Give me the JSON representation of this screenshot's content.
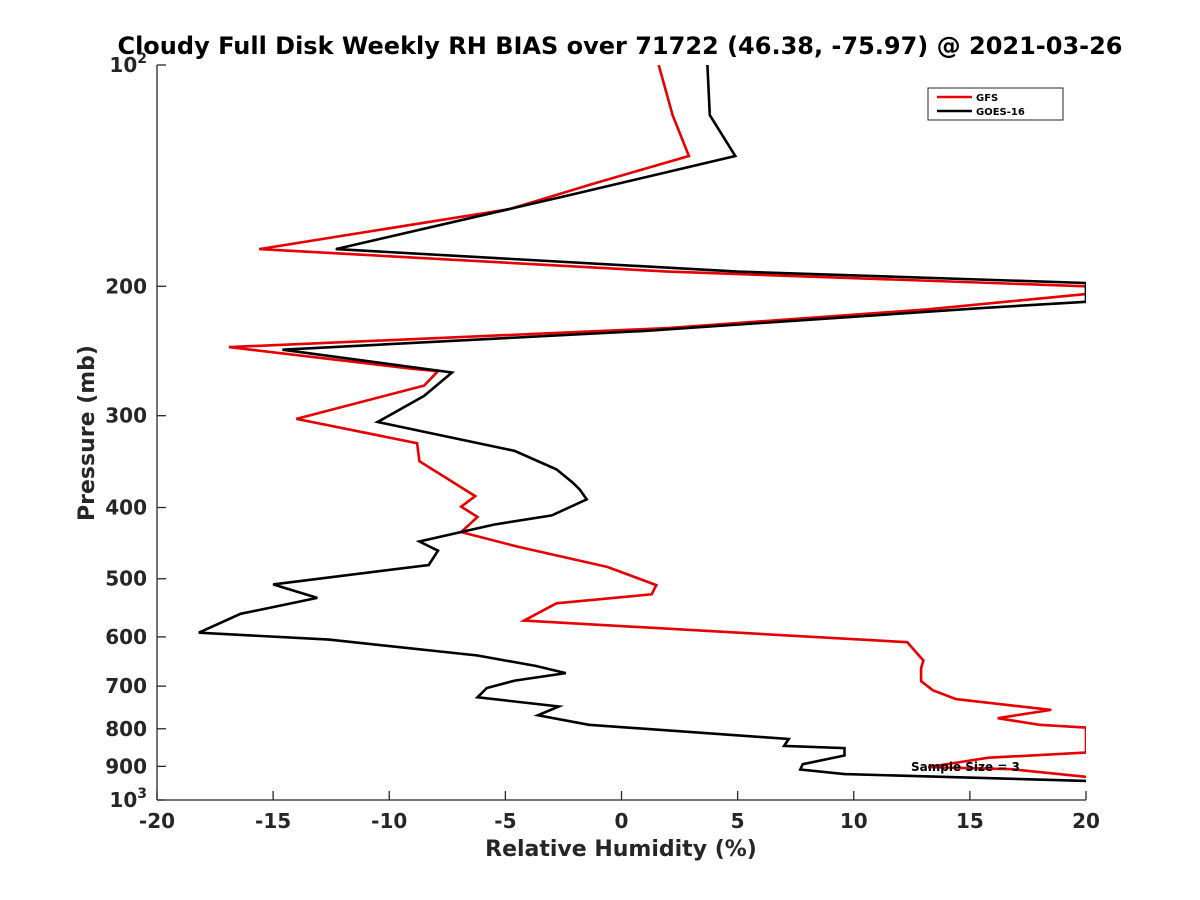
{
  "chart_data": {
    "type": "line",
    "title": "Cloudy Full Disk Weekly RH BIAS over 71722 (46.38, -75.97) @ 2021-03-26",
    "xlabel": "Relative Humidity (%)",
    "ylabel": "Pressure (mb)",
    "xlim": [
      -20,
      20
    ],
    "ylim": [
      100,
      1000
    ],
    "yscale": "log",
    "y_reversed": true,
    "x_ticks": [
      "-20",
      "-15",
      "-10",
      "-5",
      "0",
      "5",
      "10",
      "15",
      "20"
    ],
    "y_ticks": [
      {
        "value": 100,
        "label": "10",
        "sup": "2"
      },
      {
        "value": 200,
        "label": "200"
      },
      {
        "value": 300,
        "label": "300"
      },
      {
        "value": 400,
        "label": "400"
      },
      {
        "value": 500,
        "label": "500"
      },
      {
        "value": 600,
        "label": "600"
      },
      {
        "value": 700,
        "label": "700"
      },
      {
        "value": 800,
        "label": "800"
      },
      {
        "value": 900,
        "label": "900"
      },
      {
        "value": 1000,
        "label": "10",
        "sup": "3"
      }
    ],
    "annotation": "Sample Size = 3",
    "legend_position": "top-right",
    "series": [
      {
        "name": "GFS",
        "color": "#e60000",
        "x": [
          1.6,
          2.2,
          2.9,
          -1.2,
          -4.8,
          -15.6,
          2.0,
          20.0,
          20.0,
          20.0,
          13.2,
          2.0,
          -16.9,
          -9.0,
          -7.9,
          -8.5,
          -14.0,
          -8.8,
          -8.7,
          -6.3,
          -6.9,
          -6.2,
          -6.9,
          -4.5,
          -0.6,
          1.5,
          1.3,
          -2.8,
          -4.2,
          12.3,
          13.0,
          12.9,
          12.9,
          13.4,
          14.4,
          18.5,
          16.2,
          18.0,
          20.0,
          20.0,
          15.8,
          13.2,
          16.8,
          20.0
        ],
        "y": [
          100,
          117,
          133,
          145,
          157,
          178,
          191,
          200,
          201,
          205,
          215,
          228,
          242,
          259,
          261,
          273,
          303,
          327,
          346,
          386,
          399,
          412,
          432,
          452,
          482,
          510,
          525,
          540,
          570,
          610,
          646,
          662,
          689,
          709,
          729,
          754,
          774,
          790,
          797,
          862,
          876,
          902,
          908,
          930
        ]
      },
      {
        "name": "GOES-16",
        "color": "#000000",
        "x": [
          3.7,
          3.8,
          4.9,
          -2.1,
          -12.3,
          5.0,
          20.0,
          20.0,
          15.6,
          1.0,
          -14.6,
          -7.3,
          -8.5,
          -10.5,
          -4.6,
          -2.8,
          -2.1,
          -1.8,
          -1.5,
          -3.0,
          -5.5,
          -8.7,
          -7.9,
          -8.3,
          -15.0,
          -13.1,
          -16.4,
          -18.2,
          -12.6,
          -6.2,
          -3.7,
          -2.4,
          -4.6,
          -5.8,
          -6.2,
          -2.7,
          -3.6,
          -1.4,
          7.2,
          7.0,
          9.6,
          9.6,
          7.8,
          7.7,
          9.6,
          20.0
        ],
        "y": [
          100,
          117,
          133,
          150,
          178,
          191,
          198,
          210,
          214,
          230,
          244,
          262,
          282,
          306,
          335,
          355,
          370,
          378,
          390,
          410,
          422,
          445,
          458,
          479,
          509,
          531,
          558,
          592,
          605,
          636,
          657,
          672,
          688,
          704,
          725,
          746,
          767,
          790,
          826,
          844,
          850,
          870,
          894,
          909,
          922,
          942
        ]
      }
    ]
  }
}
